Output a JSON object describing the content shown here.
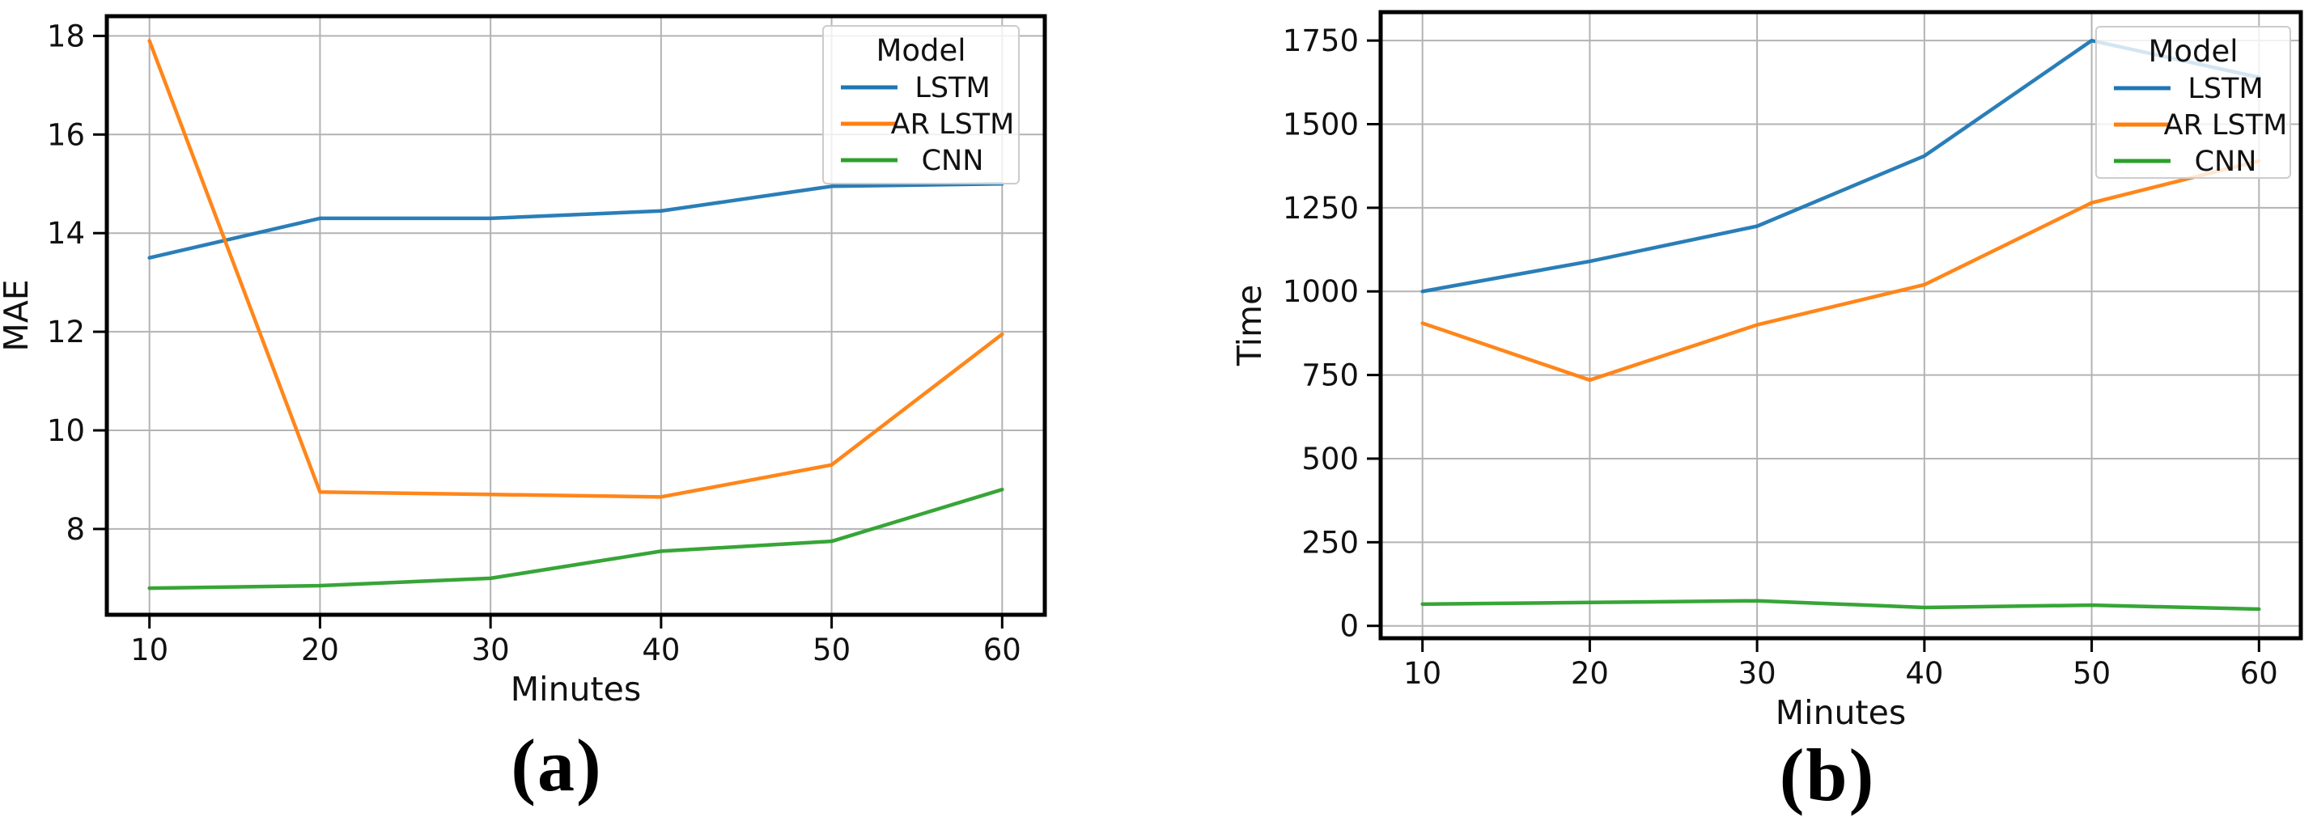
{
  "figure": {
    "background": "#ffffff",
    "text_color": "#111111",
    "grid_color": "#b3b3b3",
    "spine_color": "#000000",
    "legend_border_color": "#cccccc",
    "legend_background": "rgba(255,255,255,0.8)"
  },
  "chart_data": [
    {
      "id": "a",
      "type": "line",
      "caption": "(a)",
      "xlabel": "Minutes",
      "ylabel": "MAE",
      "legend_title": "Model",
      "legend_position": "upper right",
      "grid": true,
      "x": [
        10,
        20,
        30,
        40,
        50,
        60
      ],
      "xticks": [
        10,
        20,
        30,
        40,
        50,
        60
      ],
      "yticks": [
        8,
        10,
        12,
        14,
        16,
        18
      ],
      "xlim": [
        7.5,
        62.5
      ],
      "ylim": [
        6.26,
        18.4
      ],
      "series": [
        {
          "name": "LSTM",
          "color": "#1f77b4",
          "values": [
            13.5,
            14.3,
            14.3,
            14.45,
            14.95,
            15.0
          ]
        },
        {
          "name": "AR LSTM",
          "color": "#ff7f0e",
          "values": [
            17.9,
            8.75,
            8.7,
            8.65,
            9.3,
            11.95
          ]
        },
        {
          "name": "CNN",
          "color": "#2ca02c",
          "values": [
            6.8,
            6.85,
            7.0,
            7.55,
            7.75,
            8.8
          ]
        }
      ]
    },
    {
      "id": "b",
      "type": "line",
      "caption": "(b)",
      "xlabel": "Minutes",
      "ylabel": "Time",
      "legend_title": "Model",
      "legend_position": "upper right",
      "grid": true,
      "x": [
        10,
        20,
        30,
        40,
        50,
        60
      ],
      "xticks": [
        10,
        20,
        30,
        40,
        50,
        60
      ],
      "yticks": [
        0,
        250,
        500,
        750,
        1000,
        1250,
        1500,
        1750
      ],
      "xlim": [
        7.5,
        62.5
      ],
      "ylim": [
        -37,
        1835
      ],
      "series": [
        {
          "name": "LSTM",
          "color": "#1f77b4",
          "values": [
            1000,
            1090,
            1195,
            1405,
            1750,
            1640
          ]
        },
        {
          "name": "AR LSTM",
          "color": "#ff7f0e",
          "values": [
            905,
            735,
            900,
            1020,
            1265,
            1390
          ]
        },
        {
          "name": "CNN",
          "color": "#2ca02c",
          "values": [
            65,
            70,
            75,
            55,
            62,
            50
          ]
        }
      ]
    }
  ]
}
